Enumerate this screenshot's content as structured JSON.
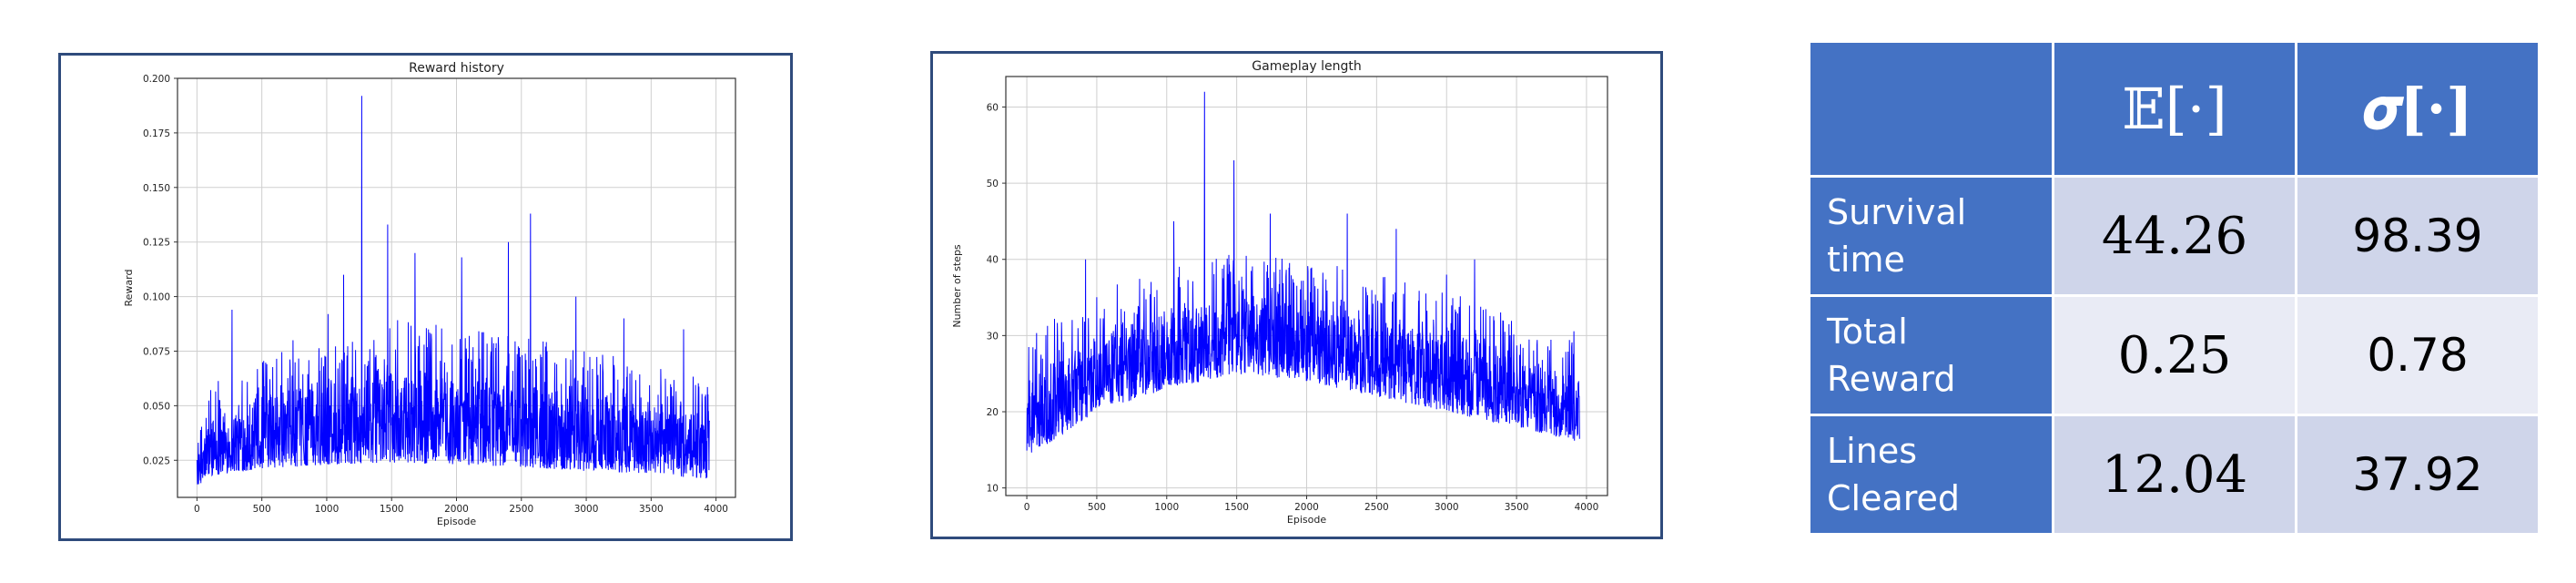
{
  "chart_data": [
    {
      "type": "line",
      "title": "Reward history",
      "xlabel": "Episode",
      "ylabel": "Reward",
      "xlim": [
        -150,
        4150
      ],
      "ylim": [
        0.008,
        0.2
      ],
      "xticks": [
        0,
        500,
        1000,
        1500,
        2000,
        2500,
        3000,
        3500,
        4000
      ],
      "yticks": [
        0.025,
        0.05,
        0.075,
        0.1,
        0.125,
        0.15,
        0.175,
        0.2
      ],
      "ytick_labels": [
        "0.025",
        "0.050",
        "0.075",
        "0.100",
        "0.125",
        "0.150",
        "0.175",
        "0.200"
      ],
      "grid": true,
      "series_color": "#0000ff",
      "n_points": 3950,
      "envelope": {
        "x": [
          0,
          100,
          500,
          1000,
          1500,
          2000,
          2500,
          3000,
          3500,
          3950
        ],
        "low": [
          0.013,
          0.018,
          0.021,
          0.023,
          0.024,
          0.023,
          0.022,
          0.02,
          0.019,
          0.016
        ],
        "high": [
          0.025,
          0.045,
          0.055,
          0.06,
          0.065,
          0.063,
          0.06,
          0.055,
          0.05,
          0.045
        ]
      },
      "peaks": [
        {
          "x": 270,
          "y": 0.094
        },
        {
          "x": 740,
          "y": 0.08
        },
        {
          "x": 1010,
          "y": 0.092
        },
        {
          "x": 1130,
          "y": 0.11
        },
        {
          "x": 1270,
          "y": 0.192
        },
        {
          "x": 1470,
          "y": 0.133
        },
        {
          "x": 1680,
          "y": 0.12
        },
        {
          "x": 2040,
          "y": 0.118
        },
        {
          "x": 2400,
          "y": 0.125
        },
        {
          "x": 2570,
          "y": 0.138
        },
        {
          "x": 2920,
          "y": 0.1
        },
        {
          "x": 3290,
          "y": 0.09
        },
        {
          "x": 3750,
          "y": 0.085
        }
      ]
    },
    {
      "type": "line",
      "title": "Gameplay length",
      "xlabel": "Episode",
      "ylabel": "Number of steps",
      "xlim": [
        -150,
        4150
      ],
      "ylim": [
        9,
        64
      ],
      "xticks": [
        0,
        500,
        1000,
        1500,
        2000,
        2500,
        3000,
        3500,
        4000
      ],
      "yticks": [
        10,
        20,
        30,
        40,
        50,
        60
      ],
      "ytick_labels": [
        "10",
        "20",
        "30",
        "40",
        "50",
        "60"
      ],
      "grid": true,
      "series_color": "#0000ff",
      "n_points": 3950,
      "envelope": {
        "x": [
          0,
          500,
          1000,
          1500,
          2000,
          2500,
          3000,
          3500,
          3950
        ],
        "low": [
          14,
          20,
          23,
          25,
          24,
          22,
          20,
          18,
          16
        ],
        "high": [
          24,
          30,
          33,
          35,
          34,
          32,
          30,
          27,
          25
        ]
      },
      "peaks": [
        {
          "x": 420,
          "y": 40
        },
        {
          "x": 1050,
          "y": 45
        },
        {
          "x": 1270,
          "y": 62
        },
        {
          "x": 1480,
          "y": 53
        },
        {
          "x": 1740,
          "y": 46
        },
        {
          "x": 2290,
          "y": 46
        },
        {
          "x": 2640,
          "y": 44
        },
        {
          "x": 3000,
          "y": 38
        },
        {
          "x": 3200,
          "y": 40
        }
      ]
    }
  ],
  "table": {
    "headers": [
      "",
      "𝔼[·]",
      "𝝈[·]"
    ],
    "rows": [
      {
        "label_line1": "Survival",
        "label_line2": "time",
        "mean": "44.26",
        "std": "98.39"
      },
      {
        "label_line1": "Total",
        "label_line2": "Reward",
        "mean": "0.25",
        "std": "0.78"
      },
      {
        "label_line1": "Lines",
        "label_line2": "Cleared",
        "mean": "12.04",
        "std": "37.92"
      }
    ]
  },
  "colors": {
    "header_blue": "#4472c4",
    "cell_dark": "#cfd5ea",
    "cell_light": "#e9ebf5",
    "panel_border": "#2f4b7c"
  }
}
